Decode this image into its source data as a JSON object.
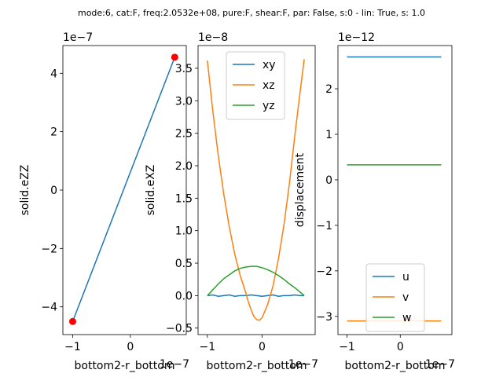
{
  "figure": {
    "suptitle": "mode:6, cat:F, freq:2.0532e+08, pure:F, shear:F, par: False, s:0 - lin: True, s: 1.0"
  },
  "chart_data": [
    {
      "type": "line",
      "xlabel": "bottom2-r_bottom",
      "ylabel": "solid.eZZ",
      "x_offset_text": "1e−7",
      "y_offset_text": "1e−7",
      "xlim": [
        -1.17,
        0.97
      ],
      "ylim": [
        -4.95,
        4.95
      ],
      "xticks": [
        -1,
        0
      ],
      "xtick_labels": [
        "−1",
        "0"
      ],
      "yticks": [
        -4,
        -2,
        0,
        2,
        4
      ],
      "ytick_labels": [
        "−4",
        "−2",
        "0",
        "2",
        "4"
      ],
      "series": [
        {
          "color": "#1f77b4",
          "x": [
            -1.0,
            0.77
          ],
          "y": [
            -4.5,
            4.55
          ]
        }
      ],
      "markers": {
        "color": "#ff0000",
        "x": [
          -1.0,
          0.77
        ],
        "y": [
          -4.5,
          4.55
        ]
      }
    },
    {
      "type": "line",
      "xlabel": "bottom2-r_bottom",
      "ylabel": "solid.eXZ",
      "x_offset_text": "1e−7",
      "y_offset_text": "1e−8",
      "xlim": [
        -1.17,
        0.97
      ],
      "ylim": [
        -0.6,
        3.85
      ],
      "xticks": [
        -1,
        0
      ],
      "xtick_labels": [
        "−1",
        "0"
      ],
      "yticks": [
        -0.5,
        0.0,
        0.5,
        1.0,
        1.5,
        2.0,
        2.5,
        3.0,
        3.5
      ],
      "ytick_labels": [
        "−0.5",
        "0.0",
        "0.5",
        "1.0",
        "1.5",
        "2.0",
        "2.5",
        "3.0",
        "3.5"
      ],
      "legend": {
        "placement": "upper center"
      },
      "series": [
        {
          "name": "xy",
          "color": "#1f77b4",
          "x": [
            -1.0,
            -0.9,
            -0.8,
            -0.7,
            -0.6,
            -0.5,
            -0.4,
            -0.3,
            -0.2,
            -0.1,
            0.0,
            0.1,
            0.2,
            0.3,
            0.4,
            0.5,
            0.6,
            0.7,
            0.77
          ],
          "y": [
            0.0,
            0.01,
            -0.01,
            0.0,
            0.01,
            -0.01,
            0.0,
            0.0,
            0.01,
            0.0,
            -0.01,
            0.0,
            0.01,
            -0.01,
            0.0,
            0.0,
            0.01,
            0.0,
            0.0
          ]
        },
        {
          "name": "xz",
          "color": "#ff7f0e",
          "x": [
            -1.0,
            -0.9,
            -0.8,
            -0.7,
            -0.6,
            -0.5,
            -0.4,
            -0.3,
            -0.25,
            -0.2,
            -0.15,
            -0.1,
            -0.05,
            0.0,
            0.1,
            0.2,
            0.3,
            0.4,
            0.5,
            0.6,
            0.7,
            0.77
          ],
          "y": [
            3.62,
            2.84,
            2.15,
            1.56,
            1.06,
            0.64,
            0.31,
            0.05,
            -0.1,
            -0.22,
            -0.32,
            -0.37,
            -0.38,
            -0.34,
            -0.14,
            0.15,
            0.57,
            1.09,
            1.73,
            2.48,
            3.17,
            3.64
          ]
        },
        {
          "name": "yz",
          "color": "#2ca02c",
          "x": [
            -1.0,
            -0.9,
            -0.8,
            -0.7,
            -0.6,
            -0.5,
            -0.4,
            -0.3,
            -0.2,
            -0.1,
            0.0,
            0.1,
            0.2,
            0.3,
            0.4,
            0.5,
            0.6,
            0.7,
            0.77
          ],
          "y": [
            0.0,
            0.09,
            0.18,
            0.26,
            0.32,
            0.38,
            0.42,
            0.44,
            0.45,
            0.45,
            0.43,
            0.4,
            0.36,
            0.31,
            0.25,
            0.18,
            0.12,
            0.05,
            0.0
          ]
        }
      ]
    },
    {
      "type": "line",
      "xlabel": "bottom2-r_bottom",
      "ylabel": "displacement",
      "x_offset_text": "1e−7",
      "y_offset_text": "1e−12",
      "xlim": [
        -1.17,
        0.97
      ],
      "ylim": [
        -3.4,
        2.95
      ],
      "xticks": [
        -1,
        0
      ],
      "xtick_labels": [
        "−1",
        "0"
      ],
      "yticks": [
        -3,
        -2,
        -1,
        0,
        1,
        2
      ],
      "ytick_labels": [
        "−3",
        "−2",
        "−1",
        "0",
        "1",
        "2"
      ],
      "legend": {
        "placement": "lower center"
      },
      "series": [
        {
          "name": "u",
          "color": "#1f77b4",
          "x": [
            -1.0,
            0.77
          ],
          "y": [
            2.7,
            2.7
          ]
        },
        {
          "name": "v",
          "color": "#ff7f0e",
          "x": [
            -1.0,
            0.77
          ],
          "y": [
            -3.1,
            -3.1
          ]
        },
        {
          "name": "w",
          "color": "#2ca02c",
          "x": [
            -1.0,
            0.77
          ],
          "y": [
            0.33,
            0.33
          ]
        }
      ]
    }
  ]
}
